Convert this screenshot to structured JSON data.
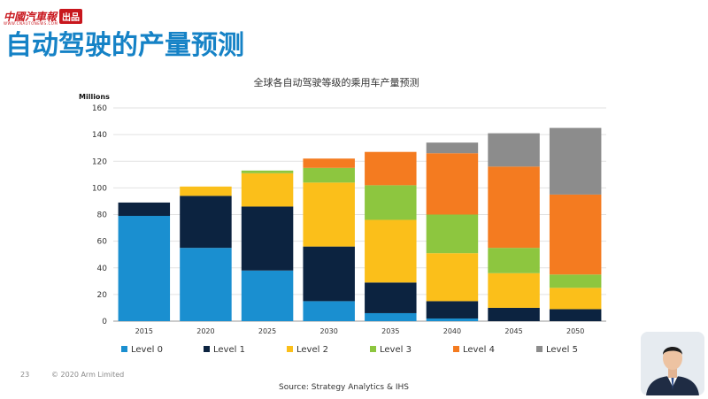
{
  "header": {
    "logo_text": "中國汽車報",
    "logo_badge": "出品",
    "logo_sub": "WWW.CNAUTONEWS.COM",
    "title": "自动驾驶的产量预测"
  },
  "footer": {
    "page_number": "23",
    "copyright": "© 2020 Arm Limited",
    "source": "Source: Strategy Analytics & IHS"
  },
  "colors": {
    "title": "#1582c6",
    "level0": "#1a8fd0",
    "level1": "#0c2340",
    "level2": "#fbbf1a",
    "level3": "#8dc63f",
    "level4": "#f47b20",
    "level5": "#8c8c8c"
  },
  "chart_data": {
    "type": "bar",
    "stacked": true,
    "title": "全球各自动驾驶等级的乘用车产量预测",
    "ylabel": "Millions",
    "xlabel": "",
    "categories": [
      "2015",
      "2020",
      "2025",
      "2030",
      "2035",
      "2040",
      "2045",
      "2050"
    ],
    "ylim": [
      0,
      160
    ],
    "yticks": [
      0,
      20,
      40,
      60,
      80,
      100,
      120,
      140,
      160
    ],
    "grid": true,
    "legend_position": "bottom",
    "series": [
      {
        "name": "Level 0",
        "color": "#1a8fd0",
        "values": [
          79,
          55,
          38,
          15,
          6,
          2,
          0,
          0
        ]
      },
      {
        "name": "Level 1",
        "color": "#0c2340",
        "values": [
          10,
          39,
          48,
          41,
          23,
          13,
          10,
          9
        ]
      },
      {
        "name": "Level 2",
        "color": "#fbbf1a",
        "values": [
          0,
          7,
          25,
          48,
          47,
          36,
          26,
          16
        ]
      },
      {
        "name": "Level 3",
        "color": "#8dc63f",
        "values": [
          0,
          0,
          2,
          11,
          26,
          29,
          19,
          10
        ]
      },
      {
        "name": "Level 4",
        "color": "#f47b20",
        "values": [
          0,
          0,
          0,
          7,
          25,
          46,
          61,
          60
        ]
      },
      {
        "name": "Level 5",
        "color": "#8c8c8c",
        "values": [
          0,
          0,
          0,
          0,
          0,
          8,
          25,
          50
        ]
      }
    ]
  }
}
